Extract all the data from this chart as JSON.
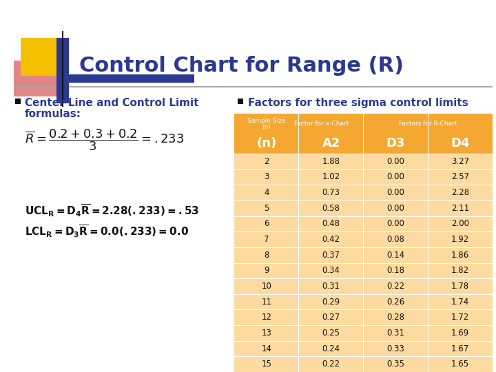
{
  "title": "Control Chart for Range (R)",
  "title_color": "#2B3990",
  "background_color": "#FFFFFF",
  "bullet1_heading_line1": "Center Line and Control Limit",
  "bullet1_heading_line2": "formulas:",
  "bullet2_heading": "Factors for three sigma control limits",
  "bullet_color": "#2B3990",
  "table_header_bg": "#F4A832",
  "table_row_bg": "#FDDBA0",
  "table_data": [
    [
      2,
      1.88,
      0.0,
      3.27
    ],
    [
      3,
      1.02,
      0.0,
      2.57
    ],
    [
      4,
      0.73,
      0.0,
      2.28
    ],
    [
      5,
      0.58,
      0.0,
      2.11
    ],
    [
      6,
      0.48,
      0.0,
      2.0
    ],
    [
      7,
      0.42,
      0.08,
      1.92
    ],
    [
      8,
      0.37,
      0.14,
      1.86
    ],
    [
      9,
      0.34,
      0.18,
      1.82
    ],
    [
      10,
      0.31,
      0.22,
      1.78
    ],
    [
      11,
      0.29,
      0.26,
      1.74
    ],
    [
      12,
      0.27,
      0.28,
      1.72
    ],
    [
      13,
      0.25,
      0.31,
      1.69
    ],
    [
      14,
      0.24,
      0.33,
      1.67
    ],
    [
      15,
      0.22,
      0.35,
      1.65
    ]
  ],
  "yellow_sq": "#F5C000",
  "red_sq": "#E8606080",
  "blue_bar": "#2B3990",
  "sep_line_color": "#AAAAAA",
  "formula_color": "#111111",
  "text_dark": "#111111",
  "table_text_color": "#111111",
  "table_header_text": "#FFFFFF"
}
